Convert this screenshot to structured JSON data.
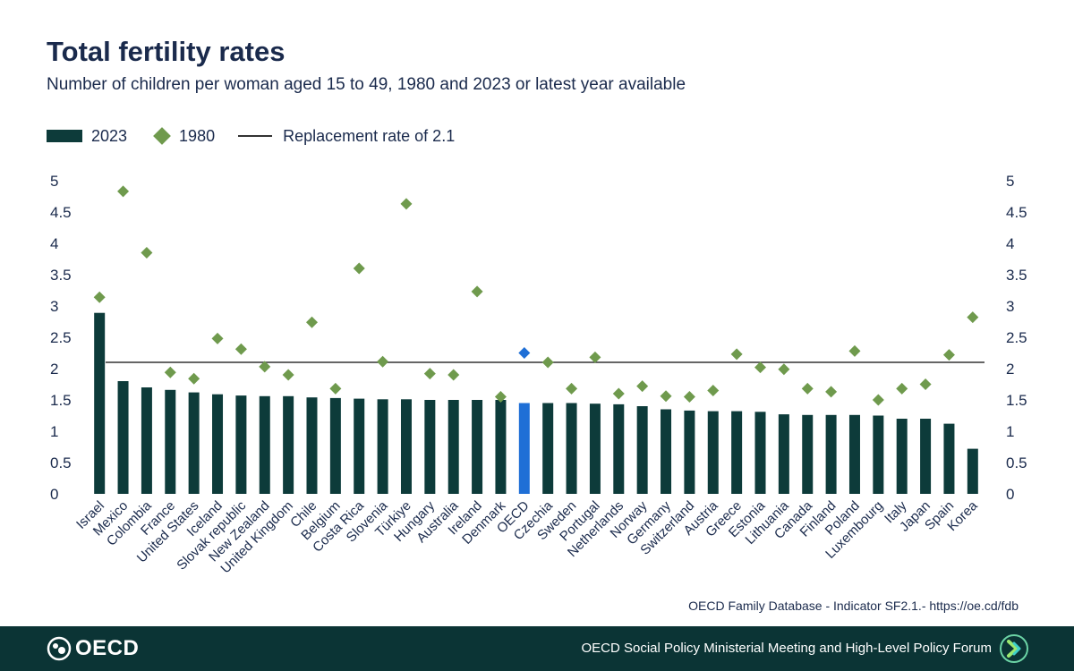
{
  "title": "Total fertility rates",
  "subtitle": "Number of children per woman aged 15 to 49, 1980 and 2023 or latest year available",
  "legend": {
    "bars": "2023",
    "diamonds": "1980",
    "line": "Replacement rate of 2.1"
  },
  "source": "OECD Family Database - Indicator SF2.1.-  https://oe.cd/fdb",
  "footer": {
    "logo_text": "OECD",
    "forum": "OECD Social Policy Ministerial Meeting and High-Level Policy Forum"
  },
  "colors": {
    "bar": "#0d3b3a",
    "highlight_bar": "#1f6fd6",
    "diamond": "#6f9a4d",
    "highlight_diamond": "#1f6fd6",
    "line": "#333333",
    "footer": "#0b3435"
  },
  "chart_data": {
    "type": "bar",
    "title": "Total fertility rates",
    "categories": [
      "Israel",
      "Mexico",
      "Colombia",
      "France",
      "United States",
      "Iceland",
      "Slovak republic",
      "New Zealand",
      "United Kingdom",
      "Chile",
      "Belgium",
      "Costa Rica",
      "Slovenia",
      "Türkiye",
      "Hungary",
      "Australia",
      "Ireland",
      "Denmark",
      "OECD",
      "Czechia",
      "Sweden",
      "Portugal",
      "Netherlands",
      "Norway",
      "Germany",
      "Switzerland",
      "Austria",
      "Greece",
      "Estonia",
      "Lithuania",
      "Canada",
      "Finland",
      "Poland",
      "Luxembourg",
      "Italy",
      "Japan",
      "Spain",
      "Korea"
    ],
    "series": [
      {
        "name": "2023",
        "kind": "bar",
        "values": [
          2.89,
          1.8,
          1.7,
          1.66,
          1.62,
          1.59,
          1.57,
          1.56,
          1.56,
          1.54,
          1.53,
          1.52,
          1.51,
          1.51,
          1.5,
          1.5,
          1.5,
          1.5,
          1.45,
          1.45,
          1.45,
          1.44,
          1.43,
          1.4,
          1.35,
          1.33,
          1.32,
          1.32,
          1.31,
          1.27,
          1.26,
          1.26,
          1.26,
          1.25,
          1.2,
          1.2,
          1.12,
          0.72
        ]
      },
      {
        "name": "1980",
        "kind": "diamond",
        "values": [
          3.14,
          4.83,
          3.85,
          1.94,
          1.84,
          2.48,
          2.31,
          2.03,
          1.9,
          2.74,
          1.68,
          3.6,
          2.11,
          4.63,
          1.92,
          1.9,
          3.23,
          1.55,
          2.25,
          2.1,
          1.68,
          2.18,
          1.6,
          1.72,
          1.56,
          1.55,
          1.65,
          2.23,
          2.02,
          1.99,
          1.68,
          1.63,
          2.28,
          1.5,
          1.68,
          1.75,
          2.22,
          2.82
        ]
      }
    ],
    "highlight": "OECD",
    "reference_line": {
      "label": "Replacement rate of 2.1",
      "value": 2.1
    },
    "yticks": [
      "0",
      "0.5",
      "1",
      "1.5",
      "2",
      "2.5",
      "3",
      "3.5",
      "4",
      "4.5",
      "5"
    ],
    "ylim": [
      0,
      5
    ],
    "xlabel": "",
    "ylabel": ""
  }
}
